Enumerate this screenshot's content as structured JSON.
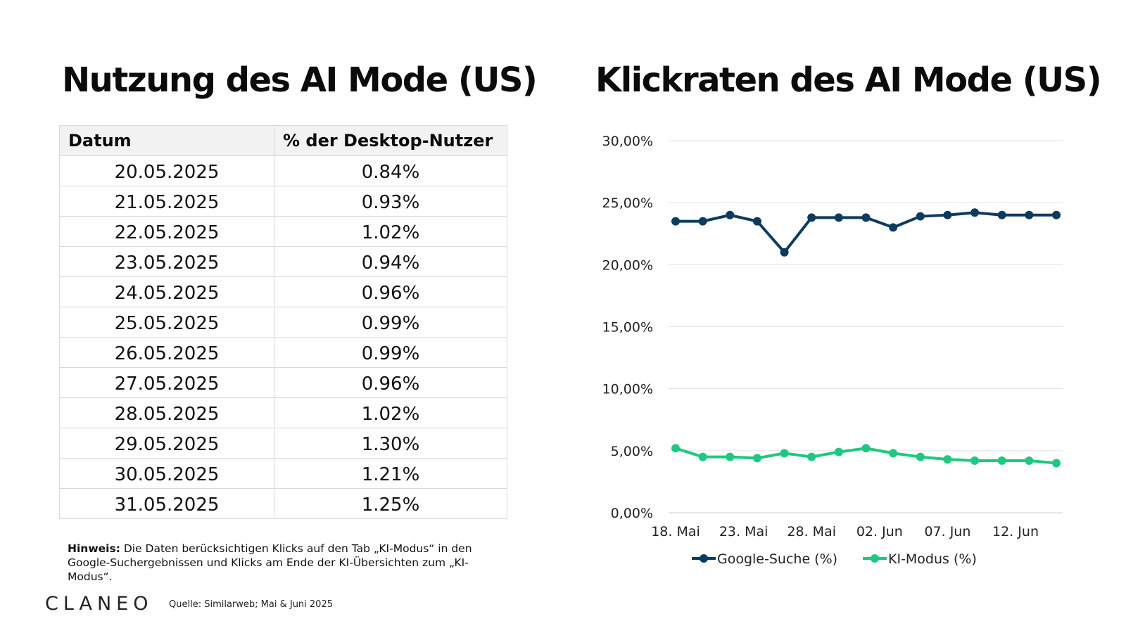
{
  "left_title": "Nutzung des AI Mode (US)",
  "right_title": "Klickraten des AI Mode (US)",
  "table": {
    "headers": [
      "Datum",
      "% der Desktop-Nutzer"
    ],
    "rows": [
      [
        "20.05.2025",
        "0.84%"
      ],
      [
        "21.05.2025",
        "0.93%"
      ],
      [
        "22.05.2025",
        "1.02%"
      ],
      [
        "23.05.2025",
        "0.94%"
      ],
      [
        "24.05.2025",
        "0.96%"
      ],
      [
        "25.05.2025",
        "0.99%"
      ],
      [
        "26.05.2025",
        "0.99%"
      ],
      [
        "27.05.2025",
        "0.96%"
      ],
      [
        "28.05.2025",
        "1.02%"
      ],
      [
        "29.05.2025",
        "1.30%"
      ],
      [
        "30.05.2025",
        "1.21%"
      ],
      [
        "31.05.2025",
        "1.25%"
      ]
    ]
  },
  "note": {
    "label": "Hinweis:",
    "text": " Die Daten berücksichtigen Klicks auf den Tab „KI-Modus“ in den Google-Suchergebnissen und Klicks am Ende der KI-Übersichten zum „KI-Modus“."
  },
  "logo": "CLANEO",
  "source": "Quelle: Similarweb; Mai & Juni 2025",
  "chart_data": {
    "type": "line",
    "title": "",
    "xlabel": "",
    "ylabel": "",
    "x": [
      "18. Mai",
      "20. Mai",
      "22. Mai",
      "24. Mai",
      "26. Mai",
      "28. Mai",
      "30. Mai",
      "01. Jun",
      "03. Jun",
      "05. Jun",
      "07. Jun",
      "09. Jun",
      "11. Jun",
      "13. Jun",
      "15. Jun"
    ],
    "x_tick_labels": [
      "18. Mai",
      "23. Mai",
      "28. Mai",
      "02. Jun",
      "07. Jun",
      "12. Jun"
    ],
    "y_ticks": [
      0,
      5,
      10,
      15,
      20,
      25,
      30
    ],
    "y_tick_labels": [
      "0,00%",
      "5,00%",
      "10,00%",
      "15,00%",
      "20,00%",
      "25,00%",
      "30,00%"
    ],
    "ylim": [
      0,
      30
    ],
    "grid": true,
    "legend_position": "bottom",
    "series": [
      {
        "name": "Google-Suche (%)",
        "color": "#0d3b5e",
        "values": [
          23.5,
          23.5,
          24.0,
          23.5,
          21.0,
          23.8,
          23.8,
          23.8,
          23.0,
          23.9,
          24.0,
          24.2,
          24.0,
          24.0,
          24.0
        ]
      },
      {
        "name": "KI-Modus (%)",
        "color": "#1ec97f",
        "values": [
          5.2,
          4.5,
          4.5,
          4.4,
          4.8,
          4.5,
          4.9,
          5.2,
          4.8,
          4.5,
          4.3,
          4.2,
          4.2,
          4.2,
          4.0
        ]
      }
    ]
  }
}
